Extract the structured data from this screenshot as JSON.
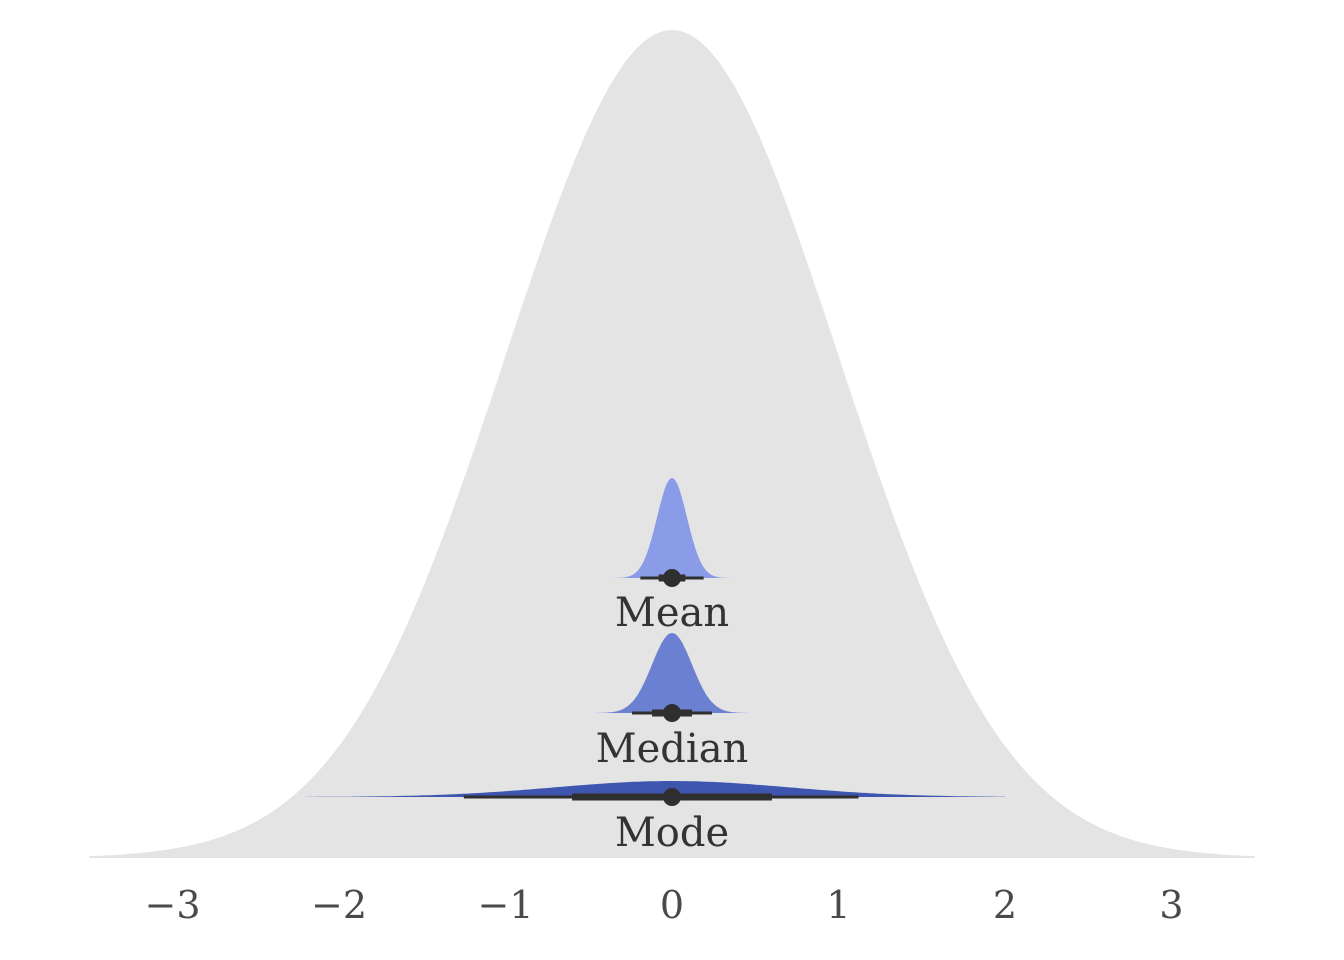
{
  "chart_data": {
    "type": "area",
    "title": "",
    "xlabel": "",
    "ylabel": "",
    "xlim": [
      -3.5,
      3.5
    ],
    "x_ticks": [
      -3,
      -2,
      -1,
      0,
      1,
      2,
      3
    ],
    "x_tick_labels": [
      "−3",
      "−2",
      "−1",
      "0",
      "1",
      "2",
      "3"
    ],
    "grid": false,
    "background_distribution": {
      "name": "",
      "type": "normal",
      "mean": 0,
      "sd": 1,
      "color": "#e4e4e4"
    },
    "series": [
      {
        "label": "Mean",
        "color": "#8a9be8",
        "center": 0.0,
        "sd": 0.09,
        "density_range": [
          -0.35,
          0.35
        ],
        "point": 0.0,
        "interval_66": [
          -0.08,
          0.08
        ],
        "interval_95": [
          -0.19,
          0.19
        ]
      },
      {
        "label": "Median",
        "color": "#6b80d1",
        "center": 0.0,
        "sd": 0.12,
        "density_range": [
          -0.47,
          0.47
        ],
        "point": 0.0,
        "interval_66": [
          -0.12,
          0.12
        ],
        "interval_95": [
          -0.24,
          0.24
        ]
      },
      {
        "label": "Mode",
        "color": "#3f56b0",
        "center": 0.0,
        "sd": 0.7,
        "density_range": [
          -2.2,
          2.0
        ],
        "point": 0.0,
        "interval_66": [
          -0.6,
          0.6
        ],
        "interval_95": [
          -1.25,
          1.12
        ]
      }
    ],
    "interval_color": "#2f2f2f"
  }
}
